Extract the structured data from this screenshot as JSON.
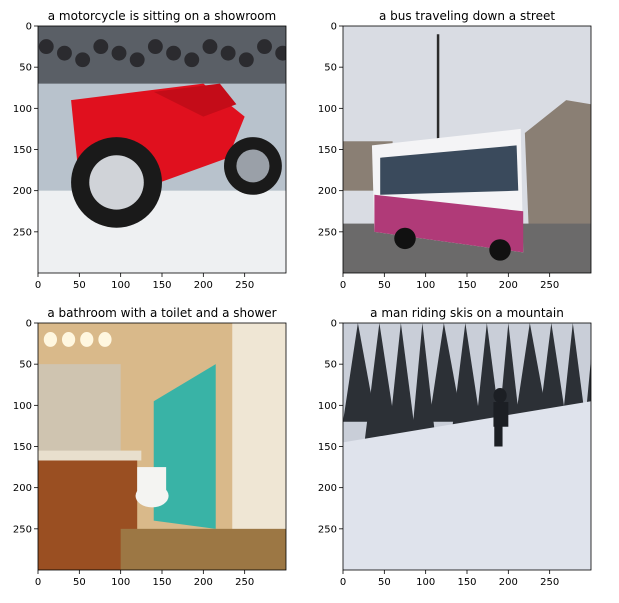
{
  "figure": {
    "panels": [
      {
        "title": "a motorcycle is sitting on a showroom",
        "scene": "motorcycle",
        "x_ticks": [
          0,
          50,
          100,
          150,
          200,
          250
        ],
        "y_ticks": [
          0,
          50,
          100,
          150,
          200,
          250
        ],
        "axis_range": [
          0,
          300
        ],
        "colors": {
          "bg": "#cfd6de",
          "floor": "#eef0f2",
          "bike": "#e0101e",
          "dark": "#1a1a1a",
          "wall": "#b8c2cc"
        }
      },
      {
        "title": "a bus traveling down a street",
        "scene": "bus",
        "x_ticks": [
          0,
          50,
          100,
          150,
          200,
          250
        ],
        "y_ticks": [
          0,
          50,
          100,
          150,
          200,
          250
        ],
        "axis_range": [
          0,
          300
        ],
        "colors": {
          "sky": "#d9dce3",
          "road": "#6b6a6a",
          "bus_white": "#f4f4f6",
          "bus_pink": "#b03a78",
          "building": "#8a7f74",
          "window": "#3a4a5c"
        }
      },
      {
        "title": "a bathroom with a toilet and a shower",
        "scene": "bathroom",
        "x_ticks": [
          0,
          50,
          100,
          150,
          200,
          250
        ],
        "y_ticks": [
          0,
          50,
          100,
          150,
          200,
          250
        ],
        "axis_range": [
          0,
          300
        ],
        "colors": {
          "wall": "#d9b98a",
          "curtain": "#39b3a6",
          "cabinet": "#9a4f22",
          "door": "#efe6d4",
          "floor": "#9c7744",
          "mirror": "#cfc4b0"
        }
      },
      {
        "title": "a man riding skis on a mountain",
        "scene": "ski",
        "x_ticks": [
          0,
          50,
          100,
          150,
          200,
          250
        ],
        "y_ticks": [
          0,
          50,
          100,
          150,
          200,
          250
        ],
        "axis_range": [
          0,
          300
        ],
        "colors": {
          "snow": "#dfe3ec",
          "trees": "#2c3036",
          "snow_trees": "#c9ced8",
          "skier": "#1c1f24"
        }
      }
    ]
  }
}
